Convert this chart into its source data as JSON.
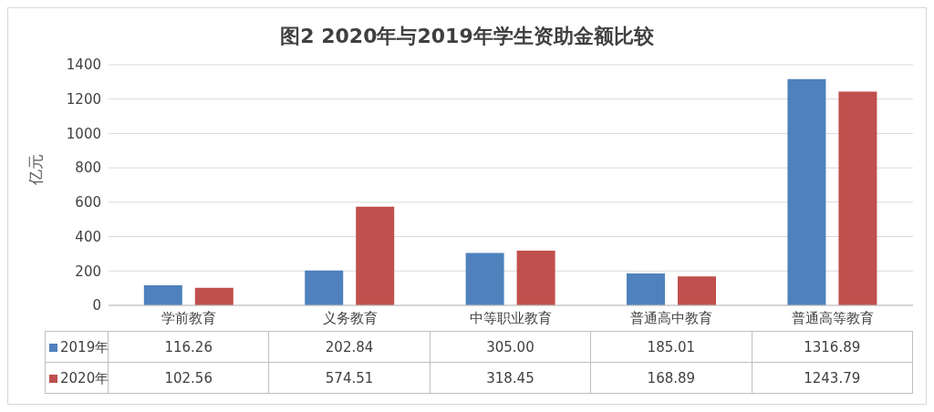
{
  "chart_data": {
    "type": "bar",
    "title": "图2 2020年与2019年学生资助金额比较",
    "ylabel": "亿元",
    "categories": [
      "学前教育",
      "义务教育",
      "中等职业教育",
      "普通高中教育",
      "普通高等教育"
    ],
    "series": [
      {
        "name": "2019年",
        "color": "#4f81bd",
        "values": [
          116.26,
          202.84,
          305.0,
          185.01,
          1316.89
        ],
        "value_labels": [
          "116.26",
          "202.84",
          "305.00",
          "185.01",
          "1316.89"
        ]
      },
      {
        "name": "2020年",
        "color": "#c0504d",
        "values": [
          102.56,
          574.51,
          318.45,
          168.89,
          1243.79
        ],
        "value_labels": [
          "102.56",
          "574.51",
          "318.45",
          "168.89",
          "1243.79"
        ]
      }
    ],
    "ylim": [
      0,
      1400
    ],
    "yticks": [
      0,
      200,
      400,
      600,
      800,
      1000,
      1200,
      1400
    ],
    "grid": "y",
    "legend": "bottom"
  }
}
